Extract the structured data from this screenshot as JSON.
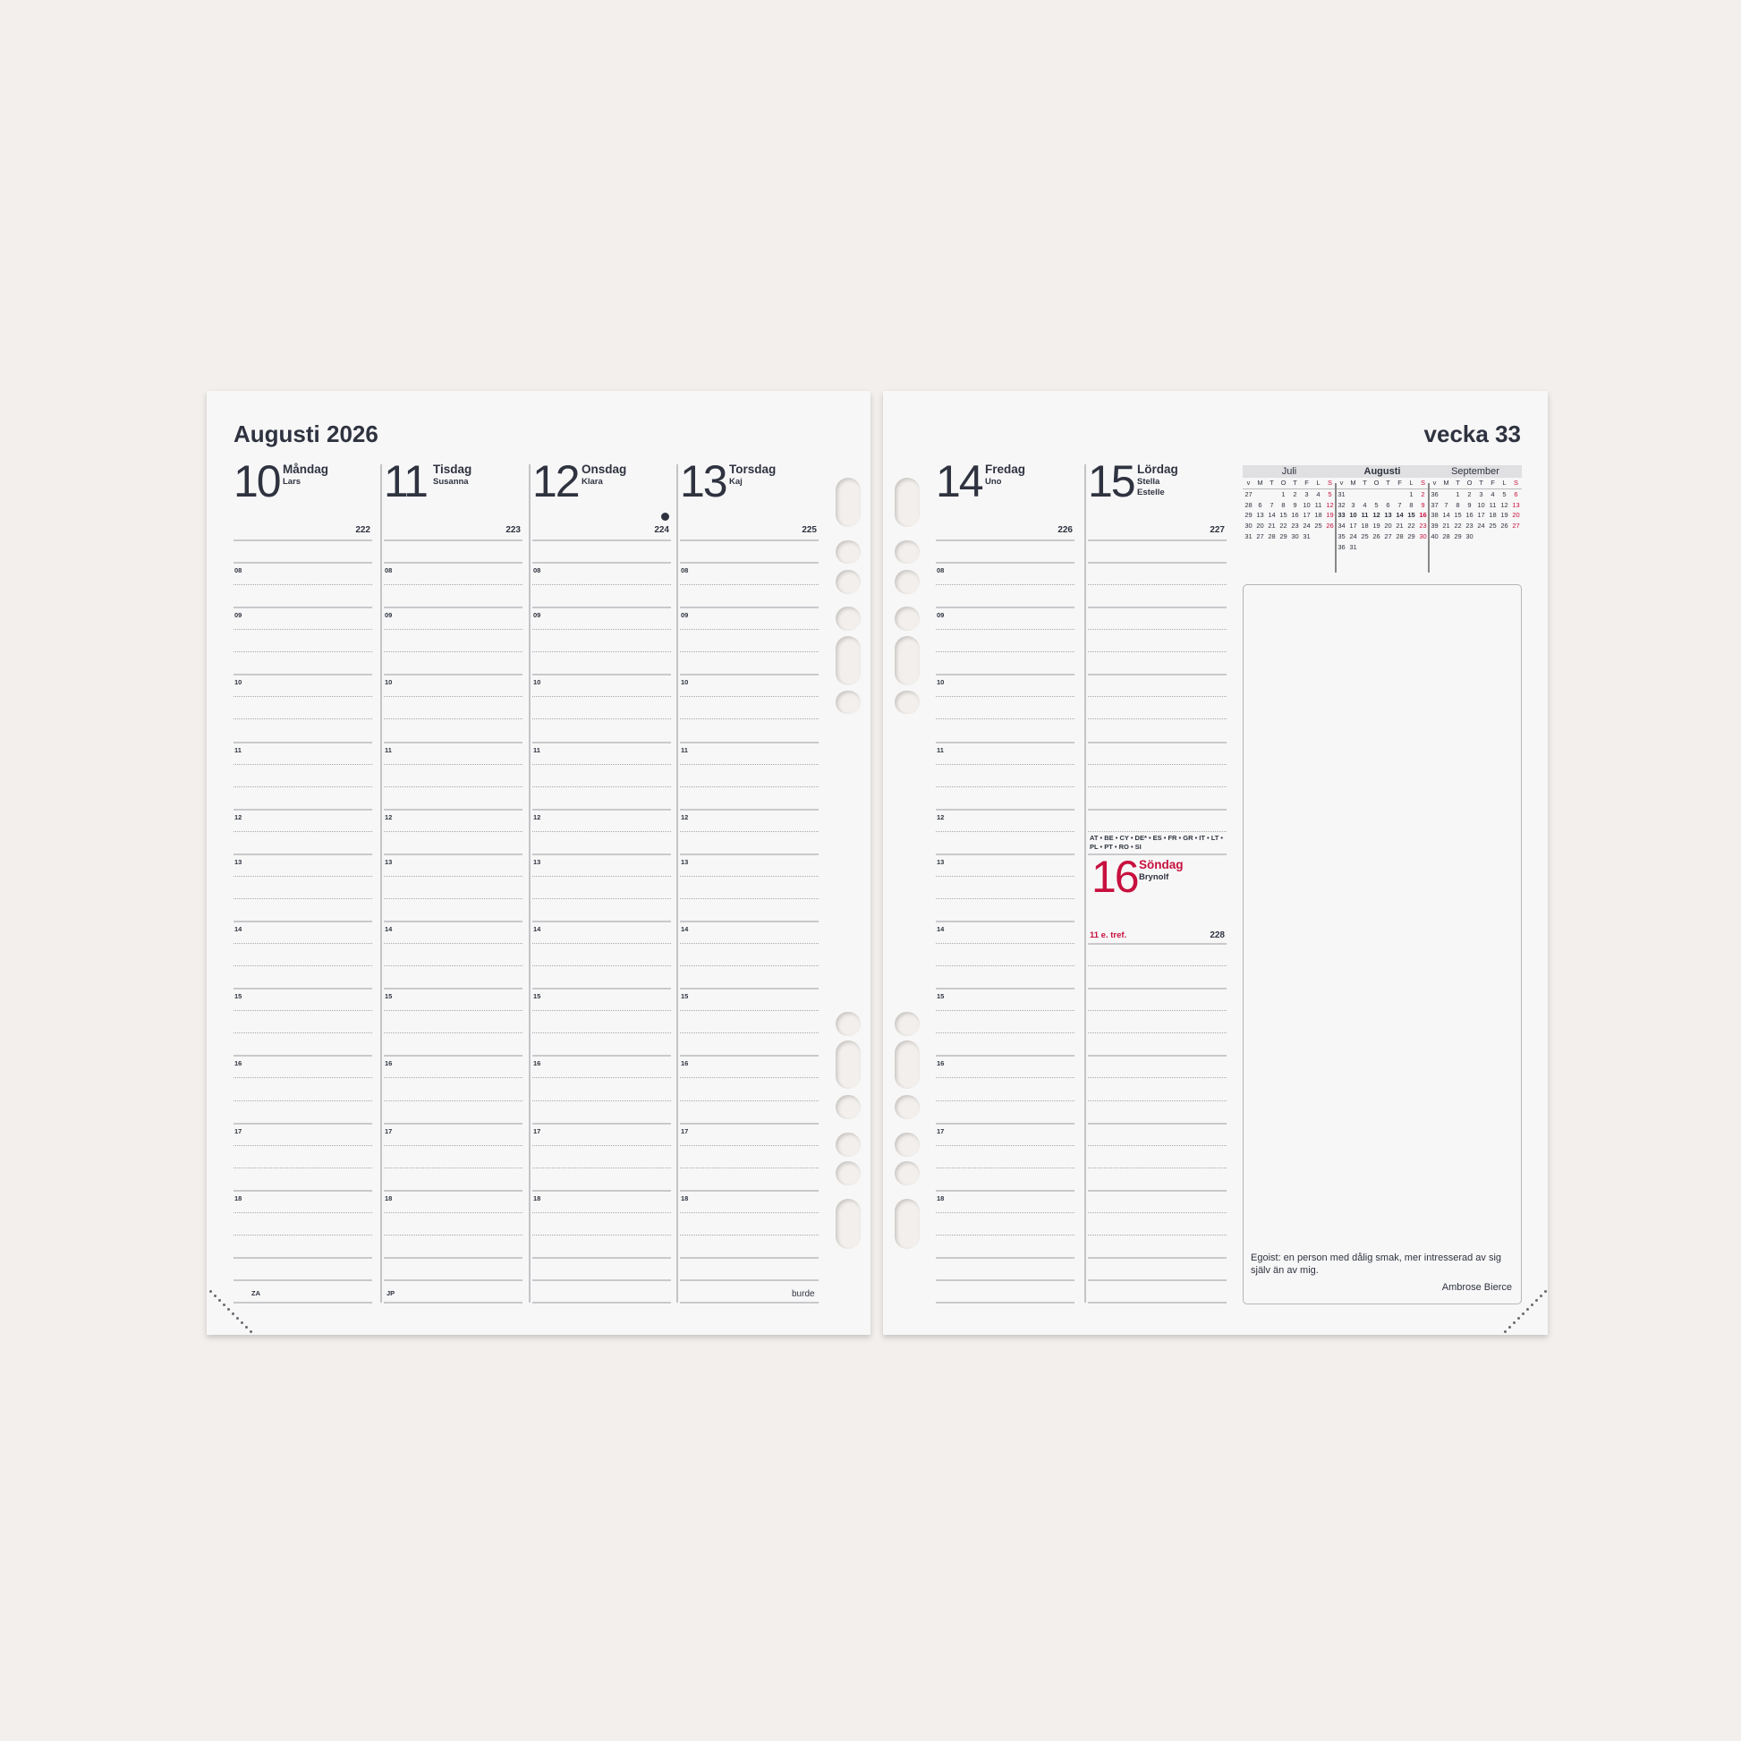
{
  "left_page": {
    "title": "Augusti 2026",
    "days": [
      {
        "num": "10",
        "name": "Måndag",
        "nameday": "Lars",
        "doy": "222",
        "footer": "ZA"
      },
      {
        "num": "11",
        "name": "Tisdag",
        "nameday": "Susanna",
        "doy": "223",
        "footer": "JP"
      },
      {
        "num": "12",
        "name": "Onsdag",
        "nameday": "Klara",
        "doy": "224",
        "footer": "",
        "moon": "new-moon"
      },
      {
        "num": "13",
        "name": "Torsdag",
        "nameday": "Kaj",
        "doy": "225",
        "footer": "burde"
      }
    ]
  },
  "right_page": {
    "title": "vecka 33",
    "days": [
      {
        "num": "14",
        "name": "Fredag",
        "nameday": "Uno",
        "doy": "226"
      },
      {
        "num": "15",
        "name": "Lördag",
        "nameday": "Stella",
        "nameday2": "Estelle",
        "doy": "227"
      }
    ],
    "holiday_countries": "AT • BE • CY • DE* • ES • FR • GR • IT • LT • PL • PT • RO • SI",
    "sunday": {
      "num": "16",
      "name": "Söndag",
      "nameday": "Brynolf",
      "sunday_label": "11 e. tref.",
      "doy": "228"
    },
    "quote": {
      "text": "Egoist: en person med dålig smak, mer intresserad av sig själv än av mig.",
      "author": "Ambrose Bierce"
    }
  },
  "hours": [
    "08",
    "09",
    "10",
    "11",
    "12",
    "13",
    "14",
    "15",
    "16",
    "17",
    "18"
  ],
  "mini_calendar": {
    "day_headers": [
      "v",
      "M",
      "T",
      "O",
      "T",
      "F",
      "L",
      "S"
    ],
    "highlight_week": "33",
    "months": [
      {
        "name": "Juli",
        "weeks": [
          [
            "27",
            "",
            "",
            "1",
            "2",
            "3",
            "4",
            "5"
          ],
          [
            "28",
            "6",
            "7",
            "8",
            "9",
            "10",
            "11",
            "12"
          ],
          [
            "29",
            "13",
            "14",
            "15",
            "16",
            "17",
            "18",
            "19"
          ],
          [
            "30",
            "20",
            "21",
            "22",
            "23",
            "24",
            "25",
            "26"
          ],
          [
            "31",
            "27",
            "28",
            "29",
            "30",
            "31",
            "",
            ""
          ]
        ]
      },
      {
        "name": "Augusti",
        "weeks": [
          [
            "31",
            "",
            "",
            "",
            "",
            "",
            "1",
            "2"
          ],
          [
            "32",
            "3",
            "4",
            "5",
            "6",
            "7",
            "8",
            "9"
          ],
          [
            "33",
            "10",
            "11",
            "12",
            "13",
            "14",
            "15",
            "16"
          ],
          [
            "34",
            "17",
            "18",
            "19",
            "20",
            "21",
            "22",
            "23"
          ],
          [
            "35",
            "24",
            "25",
            "26",
            "27",
            "28",
            "29",
            "30"
          ],
          [
            "36",
            "31",
            "",
            "",
            "",
            "",
            "",
            ""
          ]
        ]
      },
      {
        "name": "September",
        "weeks": [
          [
            "36",
            "",
            "1",
            "2",
            "3",
            "4",
            "5",
            "6"
          ],
          [
            "37",
            "7",
            "8",
            "9",
            "10",
            "11",
            "12",
            "13"
          ],
          [
            "38",
            "14",
            "15",
            "16",
            "17",
            "18",
            "19",
            "20"
          ],
          [
            "39",
            "21",
            "22",
            "23",
            "24",
            "25",
            "26",
            "27"
          ],
          [
            "40",
            "28",
            "29",
            "30",
            "",
            "",
            "",
            ""
          ]
        ]
      }
    ]
  },
  "colors": {
    "text": "#2f3340",
    "sunday_red": "#c8103e",
    "background": "#f2efec",
    "paper": "#f7f7f7"
  }
}
